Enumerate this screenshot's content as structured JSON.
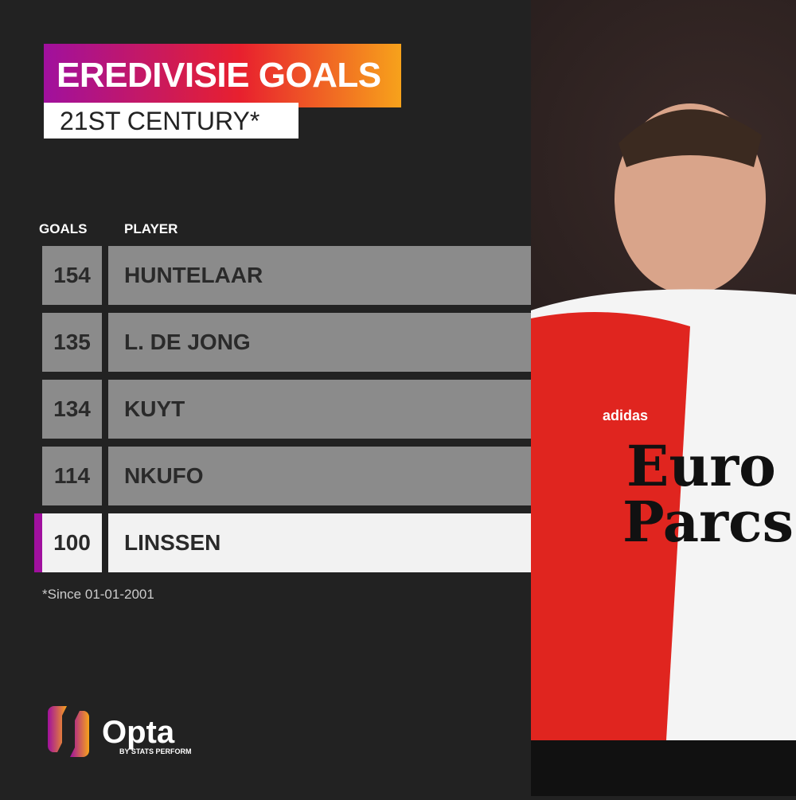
{
  "title": "EREDIVISIE GOALS",
  "subtitle": "21ST CENTURY*",
  "chart_data": {
    "type": "table",
    "columns": [
      "GOALS",
      "PLAYER"
    ],
    "rows": [
      {
        "goals": "154",
        "player": "HUNTELAAR"
      },
      {
        "goals": "135",
        "player": "L. DE JONG"
      },
      {
        "goals": "134",
        "player": "KUYT"
      },
      {
        "goals": "114",
        "player": "NKUFO"
      },
      {
        "goals": "100",
        "player": "LINSSEN",
        "highlighted": true
      }
    ]
  },
  "footnote": "*Since 01-01-2001",
  "logo": {
    "name": "Opta",
    "tagline": "BY STATS PERFORM"
  },
  "photo": {
    "sponsor": "Euro Parcs",
    "brand": "adidas"
  },
  "colors": {
    "highlight": "#a0109e",
    "row": "#8b8b8b",
    "highlight_row": "#f2f2f2"
  }
}
